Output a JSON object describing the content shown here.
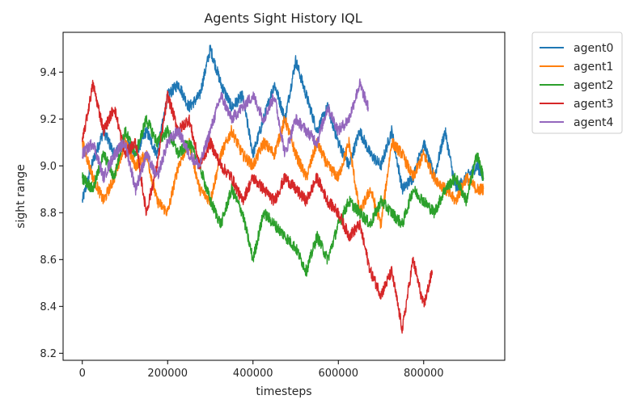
{
  "chart_data": {
    "type": "line",
    "title": "Agents Sight History IQL",
    "xlabel": "timesteps",
    "ylabel": "sight range",
    "xlim": [
      -45000,
      990000
    ],
    "ylim": [
      8.17,
      9.57
    ],
    "x_ticks": [
      0,
      200000,
      400000,
      600000,
      800000
    ],
    "y_ticks": [
      8.2,
      8.4,
      8.6,
      8.8,
      9.0,
      9.2,
      9.4
    ],
    "grid": false,
    "legend_position": "outside-top-right",
    "series": [
      {
        "name": "agent0",
        "color": "#1f77b4",
        "x": [
          0,
          25000,
          50000,
          75000,
          100000,
          125000,
          150000,
          175000,
          200000,
          225000,
          250000,
          275000,
          300000,
          325000,
          350000,
          375000,
          400000,
          425000,
          450000,
          475000,
          500000,
          525000,
          550000,
          575000,
          600000,
          625000,
          650000,
          675000,
          700000,
          725000,
          750000,
          775000,
          800000,
          825000,
          850000,
          875000,
          900000,
          925000,
          940000
        ],
        "y": [
          8.85,
          9.02,
          9.15,
          9.05,
          9.1,
          9.05,
          9.15,
          9.05,
          9.3,
          9.35,
          9.25,
          9.3,
          9.5,
          9.35,
          9.25,
          9.3,
          9.05,
          9.2,
          9.35,
          9.2,
          9.45,
          9.3,
          9.15,
          9.25,
          9.1,
          9.0,
          9.15,
          9.05,
          9.0,
          9.15,
          8.9,
          8.95,
          9.1,
          8.95,
          9.15,
          8.9,
          8.95,
          9.0,
          8.95
        ]
      },
      {
        "name": "agent1",
        "color": "#ff7f0e",
        "x": [
          0,
          25000,
          50000,
          75000,
          100000,
          125000,
          150000,
          175000,
          200000,
          225000,
          250000,
          275000,
          300000,
          325000,
          350000,
          375000,
          400000,
          425000,
          450000,
          475000,
          500000,
          525000,
          550000,
          575000,
          600000,
          625000,
          650000,
          675000,
          700000,
          725000,
          750000,
          775000,
          800000,
          825000,
          850000,
          875000,
          900000,
          925000,
          940000
        ],
        "y": [
          9.1,
          8.95,
          8.85,
          8.95,
          9.1,
          9.0,
          9.05,
          8.85,
          8.8,
          9.0,
          9.1,
          8.9,
          8.85,
          9.05,
          9.15,
          9.05,
          9.0,
          9.1,
          9.05,
          9.2,
          9.05,
          8.95,
          9.1,
          9.0,
          8.95,
          9.1,
          8.8,
          8.9,
          8.75,
          9.1,
          9.05,
          8.95,
          9.05,
          8.95,
          8.9,
          8.85,
          8.95,
          8.9,
          8.9
        ]
      },
      {
        "name": "agent2",
        "color": "#2ca02c",
        "x": [
          0,
          25000,
          50000,
          75000,
          100000,
          125000,
          150000,
          175000,
          200000,
          225000,
          250000,
          275000,
          300000,
          325000,
          350000,
          375000,
          400000,
          425000,
          450000,
          475000,
          500000,
          525000,
          550000,
          575000,
          600000,
          625000,
          650000,
          675000,
          700000,
          725000,
          750000,
          775000,
          800000,
          825000,
          850000,
          875000,
          900000,
          925000,
          940000
        ],
        "y": [
          8.95,
          8.9,
          9.05,
          8.95,
          9.15,
          9.05,
          9.2,
          9.1,
          9.15,
          9.05,
          9.1,
          9.0,
          8.85,
          8.75,
          8.9,
          8.8,
          8.6,
          8.8,
          8.75,
          8.7,
          8.65,
          8.55,
          8.7,
          8.6,
          8.75,
          8.85,
          8.8,
          8.75,
          8.85,
          8.8,
          8.75,
          8.9,
          8.85,
          8.8,
          8.9,
          8.95,
          8.85,
          9.05,
          8.95
        ]
      },
      {
        "name": "agent3",
        "color": "#d62728",
        "x": [
          0,
          25000,
          50000,
          75000,
          100000,
          125000,
          150000,
          175000,
          200000,
          225000,
          250000,
          275000,
          300000,
          325000,
          350000,
          375000,
          400000,
          425000,
          450000,
          475000,
          500000,
          525000,
          550000,
          575000,
          600000,
          625000,
          650000,
          675000,
          700000,
          725000,
          750000,
          775000,
          800000,
          820000
        ],
        "y": [
          9.1,
          9.35,
          9.15,
          9.25,
          9.05,
          9.1,
          8.8,
          9.0,
          9.3,
          9.15,
          9.2,
          9.0,
          9.1,
          9.0,
          8.95,
          8.85,
          8.95,
          8.9,
          8.85,
          8.95,
          8.9,
          8.85,
          8.95,
          8.85,
          8.8,
          8.7,
          8.75,
          8.55,
          8.45,
          8.55,
          8.3,
          8.6,
          8.4,
          8.55
        ]
      },
      {
        "name": "agent4",
        "color": "#9467bd",
        "x": [
          0,
          25000,
          50000,
          75000,
          100000,
          125000,
          150000,
          175000,
          200000,
          225000,
          250000,
          275000,
          300000,
          325000,
          350000,
          375000,
          400000,
          425000,
          450000,
          475000,
          500000,
          525000,
          550000,
          575000,
          600000,
          625000,
          650000,
          670000
        ],
        "y": [
          9.05,
          9.1,
          8.95,
          9.05,
          9.1,
          8.9,
          9.05,
          8.95,
          9.1,
          9.15,
          9.05,
          9.0,
          9.15,
          9.3,
          9.2,
          9.25,
          9.3,
          9.2,
          9.3,
          9.05,
          9.2,
          9.15,
          9.1,
          9.25,
          9.15,
          9.2,
          9.35,
          9.25
        ]
      }
    ]
  }
}
